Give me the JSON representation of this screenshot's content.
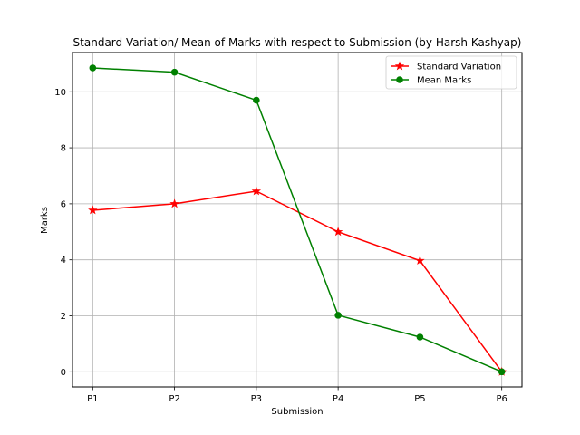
{
  "chart_data": {
    "type": "line",
    "title": "Standard Variation/ Mean of Marks with respect to Submission  (by Harsh Kashyap)",
    "xlabel": "Submission",
    "ylabel": "Marks",
    "categories": [
      "P1",
      "P2",
      "P3",
      "P4",
      "P5",
      "P6"
    ],
    "ylim": [
      -0.54,
      11.4
    ],
    "yticks": [
      0,
      2,
      4,
      6,
      8,
      10
    ],
    "grid": true,
    "legend_position": "top-right",
    "series": [
      {
        "name": "Standard Variation",
        "values": [
          5.77,
          6.0,
          6.45,
          5.0,
          3.97,
          0.0
        ],
        "color": "#ff0000",
        "marker": "star"
      },
      {
        "name": "Mean Marks",
        "values": [
          10.85,
          10.7,
          9.7,
          2.02,
          1.24,
          0.0
        ],
        "color": "#008000",
        "marker": "circle"
      }
    ]
  }
}
